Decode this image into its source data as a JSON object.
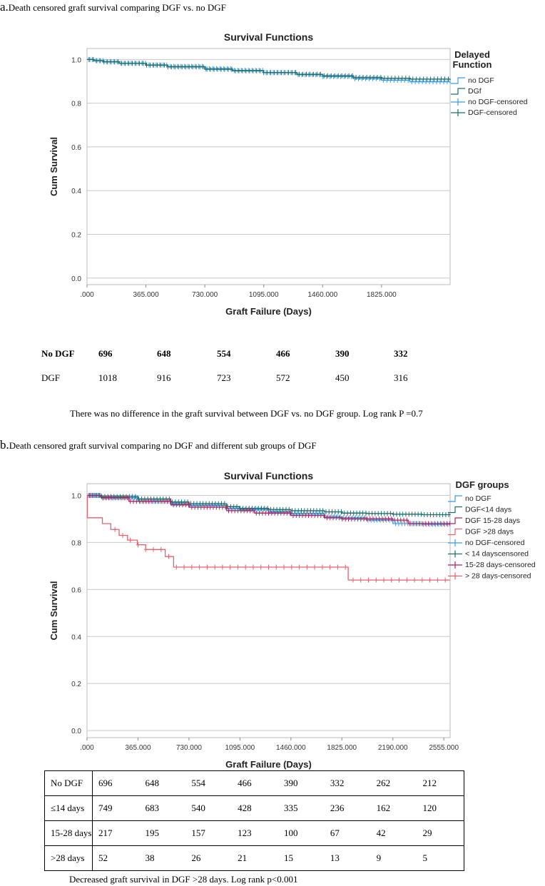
{
  "panel_a": {
    "label": "a.",
    "caption": "Death censored graft survival comparing DGF vs. no DGF",
    "note": "There was no difference in the graft survival between DGF vs. no DGF group. Log rank P =0.7",
    "risk_table": {
      "rows": [
        {
          "label": "No DGF",
          "values": [
            "696",
            "648",
            "554",
            "466",
            "390",
            "332"
          ]
        },
        {
          "label": "DGF",
          "values": [
            "1018",
            "916",
            "723",
            "572",
            "450",
            "316"
          ]
        }
      ]
    }
  },
  "panel_b": {
    "label": "b.",
    "caption": "Death censored graft survival comparing no DGF and  different sub groups of DGF",
    "note": "Decreased graft survival in DGF >28 days. Log rank p<0.001",
    "risk_table": {
      "rows": [
        {
          "label": "No DGF",
          "values": [
            "696",
            "648",
            "554",
            "466",
            "390",
            "332",
            "262",
            "212"
          ]
        },
        {
          "label": "≤14 days",
          "values": [
            "749",
            "683",
            "540",
            "428",
            "335",
            "236",
            "162",
            "120"
          ]
        },
        {
          "label": "15-28 days",
          "values": [
            "217",
            "195",
            "157",
            "123",
            "100",
            "67",
            "42",
            "29"
          ]
        },
        {
          "label": ">28 days",
          "values": [
            "52",
            "38",
            "26",
            "21",
            "15",
            "13",
            "9",
            "5"
          ]
        }
      ]
    }
  },
  "chart_data": [
    {
      "type": "line",
      "title": "Survival Functions",
      "xlabel": "Graft Failure (Days)",
      "ylabel": "Cum Survival",
      "xlim": [
        0,
        2250
      ],
      "ylim": [
        -0.03,
        1.05
      ],
      "x_ticks": [
        0,
        365,
        730,
        1095,
        1460,
        1825
      ],
      "x_tick_labels": [
        ".000",
        "365.000",
        "730.000",
        "1095.000",
        "1460.000",
        "1825.000"
      ],
      "y_ticks": [
        0,
        0.2,
        0.4,
        0.6,
        0.8,
        1.0
      ],
      "y_tick_labels": [
        "0.0",
        "0.2",
        "0.4",
        "0.6",
        "0.8",
        "1.0"
      ],
      "grid": "horizontal",
      "legend_title": "Delayed Function",
      "legend_position": "right",
      "series": [
        {
          "name": "no DGF",
          "color": "#3d9be9",
          "censored_name": "no DGF-censored",
          "x": [
            0,
            40,
            100,
            200,
            365,
            500,
            730,
            900,
            1095,
            1300,
            1460,
            1650,
            1825,
            2000,
            2250
          ],
          "y": [
            1.0,
            0.995,
            0.99,
            0.983,
            0.975,
            0.968,
            0.958,
            0.95,
            0.94,
            0.93,
            0.922,
            0.912,
            0.905,
            0.898,
            0.89
          ]
        },
        {
          "name": "DGf",
          "color": "#1f6e6a",
          "censored_name": "DGF-censored",
          "x": [
            0,
            40,
            100,
            200,
            365,
            500,
            730,
            900,
            1095,
            1300,
            1460,
            1650,
            1825,
            2000,
            2250
          ],
          "y": [
            1.0,
            0.994,
            0.989,
            0.982,
            0.974,
            0.966,
            0.955,
            0.948,
            0.94,
            0.932,
            0.925,
            0.918,
            0.914,
            0.91,
            0.905
          ]
        }
      ]
    },
    {
      "type": "line",
      "title": "Survival Functions",
      "xlabel": "Graft Failure (Days)",
      "ylabel": "Cum Survival",
      "xlim": [
        0,
        2600
      ],
      "ylim": [
        -0.03,
        1.05
      ],
      "x_ticks": [
        0,
        365,
        730,
        1095,
        1460,
        1825,
        2190,
        2555
      ],
      "x_tick_labels": [
        ".000",
        "365.000",
        "730.000",
        "1095.000",
        "1460.000",
        "1825.000",
        "2190.000",
        "2555.000"
      ],
      "y_ticks": [
        0,
        0.2,
        0.4,
        0.6,
        0.8,
        1.0
      ],
      "y_tick_labels": [
        "0.0",
        "0.2",
        "0.4",
        "0.6",
        "0.8",
        "1.0"
      ],
      "grid": "horizontal",
      "legend_title": "DGF groups",
      "legend_position": "right",
      "series": [
        {
          "name": "no DGF",
          "color": "#3d9be9",
          "censored_name": "no DGF-censored",
          "x": [
            0,
            100,
            365,
            600,
            730,
            1000,
            1095,
            1300,
            1460,
            1700,
            1825,
            2000,
            2190,
            2400,
            2555,
            2600
          ],
          "y": [
            1.0,
            0.99,
            0.975,
            0.965,
            0.958,
            0.945,
            0.94,
            0.93,
            0.922,
            0.91,
            0.905,
            0.895,
            0.88,
            0.877,
            0.877,
            0.877
          ]
        },
        {
          "name": "DGF<14 days",
          "color": "#1f6e6a",
          "censored_name": "< 14 dayscensored",
          "x": [
            0,
            100,
            365,
            600,
            730,
            1000,
            1095,
            1300,
            1460,
            1700,
            1825,
            2000,
            2190,
            2400,
            2600
          ],
          "y": [
            1.0,
            0.995,
            0.985,
            0.972,
            0.965,
            0.952,
            0.945,
            0.94,
            0.935,
            0.93,
            0.925,
            0.923,
            0.92,
            0.918,
            0.918
          ]
        },
        {
          "name": "DGF 15-28 days",
          "color": "#a3285e",
          "censored_name": "15-28 days-censored",
          "x": [
            0,
            100,
            300,
            600,
            730,
            1000,
            1200,
            1460,
            1700,
            1825,
            2000,
            2190,
            2300,
            2600
          ],
          "y": [
            1.0,
            0.99,
            0.975,
            0.96,
            0.95,
            0.935,
            0.925,
            0.915,
            0.905,
            0.9,
            0.9,
            0.895,
            0.88,
            0.88
          ]
        },
        {
          "name": "DGF >28 days",
          "color": "#e8606e",
          "censored_name": "> 28 days-censored",
          "x": [
            0,
            2,
            60,
            110,
            170,
            230,
            290,
            360,
            420,
            560,
            620,
            1850,
            1870,
            2600
          ],
          "y": [
            1.0,
            0.905,
            0.905,
            0.88,
            0.855,
            0.83,
            0.81,
            0.79,
            0.77,
            0.74,
            0.695,
            0.695,
            0.64,
            0.64
          ]
        }
      ]
    }
  ]
}
